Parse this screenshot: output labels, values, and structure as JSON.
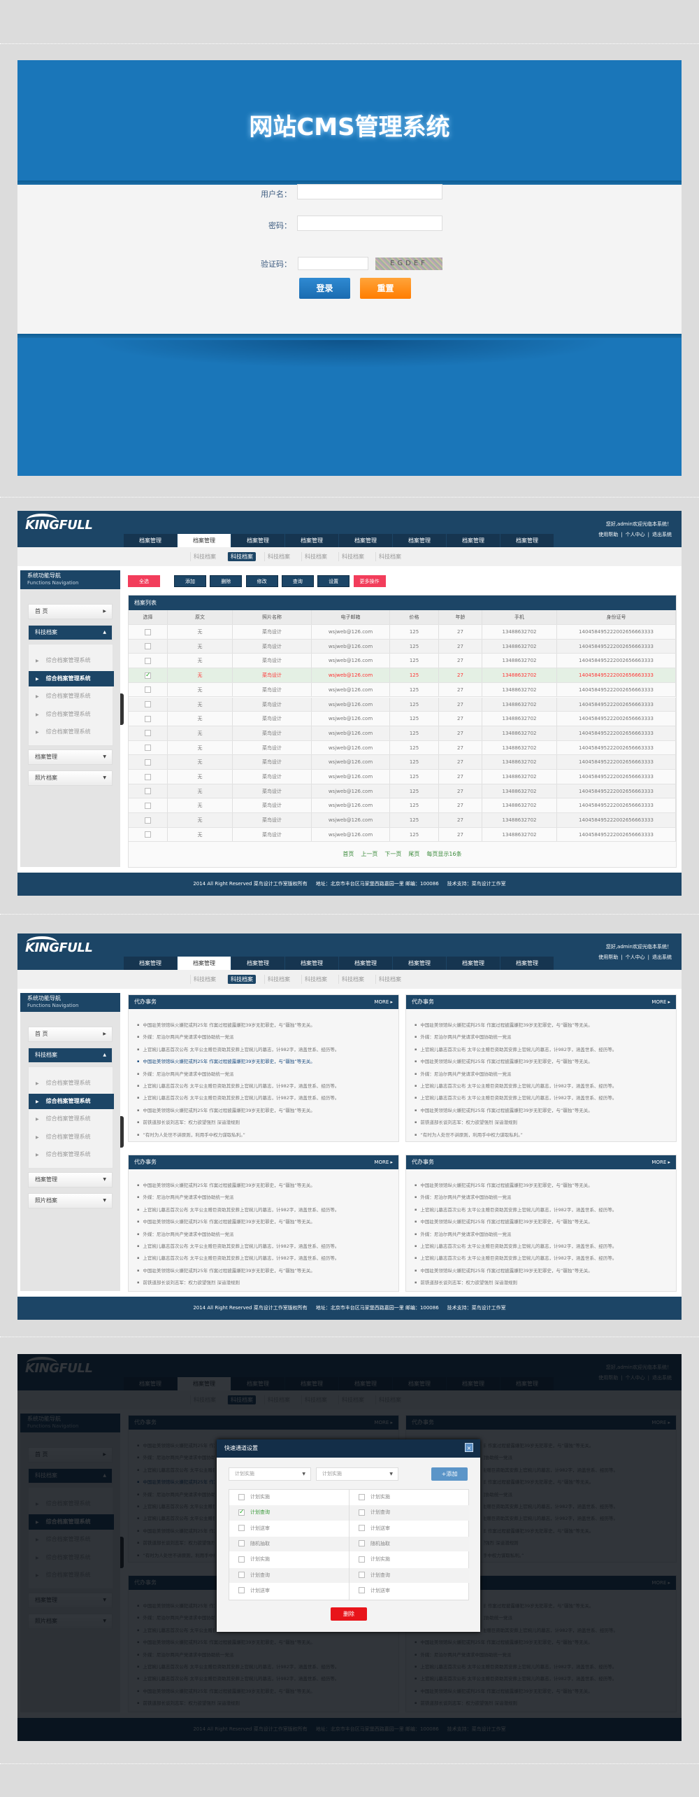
{
  "colors": {
    "brand_navy": "#1c4566",
    "login_blue": "#1a76b9",
    "pink": "#f23d5b",
    "orange": "#ff8a14",
    "delete_red": "#e8141a",
    "pager_green": "#3a8a3a"
  },
  "login": {
    "title": "网站CMS管理系统",
    "username_label": "用户名：",
    "password_label": "密码：",
    "captcha_label": "验证码：",
    "captcha_image_text": "EGDEF",
    "username_value": "",
    "password_value": "",
    "captcha_value": "",
    "login_button": "登录",
    "reset_button": "重置"
  },
  "header": {
    "logo": "KINGFULL",
    "welcome": "您好,admin欢迎光临本系统！",
    "links": [
      "使用帮助",
      "个人中心",
      "退出系统"
    ],
    "tabs": [
      "档案管理",
      "档案管理",
      "档案管理",
      "档案管理",
      "档案管理",
      "档案管理",
      "档案管理",
      "档案管理"
    ],
    "active_tab": 1,
    "subnav": [
      "科技档案",
      "科技档案",
      "科技档案",
      "科技档案",
      "科技档案",
      "科技档案"
    ],
    "active_subnav": 1
  },
  "sidebar": {
    "title": "系统功能导航",
    "subtitle": "Functions Navigation",
    "home": "首 页",
    "open_section": "科技档案",
    "sub_items": [
      "综合档案管理系统",
      "综合档案管理系统",
      "综合档案管理系统",
      "综合档案管理系统",
      "综合档案管理系统"
    ],
    "active_sub": 1,
    "sections": [
      "档案管理",
      "照片档案"
    ]
  },
  "toolbar": {
    "select_all": "全选",
    "buttons": [
      "添加",
      "删除",
      "修改",
      "查询",
      "设置"
    ],
    "more": "更多操作"
  },
  "table": {
    "title": "档案列表",
    "columns": [
      "选择",
      "原文",
      "照片名称",
      "电子邮箱",
      "价格",
      "年龄",
      "手机",
      "身份证号"
    ],
    "selected_row": 3,
    "rows": [
      [
        "无",
        "菜鸟设计",
        "wsjweb@126.com",
        "125",
        "27",
        "13488632702",
        "140458495222002656663333"
      ],
      [
        "无",
        "菜鸟设计",
        "wsjweb@126.com",
        "125",
        "27",
        "13488632702",
        "140458495222002656663333"
      ],
      [
        "无",
        "菜鸟设计",
        "wsjweb@126.com",
        "125",
        "27",
        "13488632702",
        "140458495222002656663333"
      ],
      [
        "无",
        "菜鸟设计",
        "wsjweb@126.com",
        "125",
        "27",
        "13488632702",
        "140458495222002656663333"
      ],
      [
        "无",
        "菜鸟设计",
        "wsjweb@126.com",
        "125",
        "27",
        "13488632702",
        "140458495222002656663333"
      ],
      [
        "无",
        "菜鸟设计",
        "wsjweb@126.com",
        "125",
        "27",
        "13488632702",
        "140458495222002656663333"
      ],
      [
        "无",
        "菜鸟设计",
        "wsjweb@126.com",
        "125",
        "27",
        "13488632702",
        "140458495222002656663333"
      ],
      [
        "无",
        "菜鸟设计",
        "wsjweb@126.com",
        "125",
        "27",
        "13488632702",
        "140458495222002656663333"
      ],
      [
        "无",
        "菜鸟设计",
        "wsjweb@126.com",
        "125",
        "27",
        "13488632702",
        "140458495222002656663333"
      ],
      [
        "无",
        "菜鸟设计",
        "wsjweb@126.com",
        "125",
        "27",
        "13488632702",
        "140458495222002656663333"
      ],
      [
        "无",
        "菜鸟设计",
        "wsjweb@126.com",
        "125",
        "27",
        "13488632702",
        "140458495222002656663333"
      ],
      [
        "无",
        "菜鸟设计",
        "wsjweb@126.com",
        "125",
        "27",
        "13488632702",
        "140458495222002656663333"
      ],
      [
        "无",
        "菜鸟设计",
        "wsjweb@126.com",
        "125",
        "27",
        "13488632702",
        "140458495222002656663333"
      ],
      [
        "无",
        "菜鸟设计",
        "wsjweb@126.com",
        "125",
        "27",
        "13488632702",
        "140458495222002656663333"
      ],
      [
        "无",
        "菜鸟设计",
        "wsjweb@126.com",
        "125",
        "27",
        "13488632702",
        "140458495222002656663333"
      ]
    ],
    "pagination": [
      "首页",
      "上一页",
      "下一页",
      "尾页",
      "每页显示16条"
    ]
  },
  "news": {
    "title": "代办事务",
    "more": "MORE ▸",
    "panels": [
      {
        "highlight": 3,
        "items": [
          "中国驻美领馆纵火嫌犯或判25年 作案过程披露嫌犯39岁无犯罪史，与“疆独”等无关。",
          "外媒：尼泊尔两共产党请求中国协助统一党派",
          "上官婉儿墓志首次公布 太平公主赠巨资助其安葬上官婉儿的墓志，计982字，涵盖世系、经历等。",
          "中国驻美领馆纵火嫌犯或判25年 作案过程披露嫌犯39岁无犯罪史，与“疆独”等无关。",
          "外媒：尼泊尔两共产党请求中国协助统一党派",
          "上官婉儿墓志首次公布 太平公主赠巨资助其安葬上官婉儿的墓志，计982字，涵盖世系、经历等。",
          "上官婉儿墓志首次公布 太平公主赠巨资助其安葬上官婉儿的墓志，计982字，涵盖世系、经历等。",
          "中国驻美领馆纵火嫌犯或判25年 作案过程披露嫌犯39岁无犯罪史，与“疆独”等无关。",
          "前铁道部长谈刘志军：权力欲望强烈 深谙潜规则",
          "“有时为人处世不讲原则，利用手中权力谋取私利。”"
        ]
      },
      {
        "highlight": -1,
        "items": [
          "中国驻美领馆纵火嫌犯或判25年 作案过程披露嫌犯39岁无犯罪史，与“疆独”等无关。",
          "外媒：尼泊尔两共产党请求中国协助统一党派",
          "上官婉儿墓志首次公布 太平公主赠巨资助其安葬上官婉儿的墓志，计982字，涵盖世系、经历等。",
          "中国驻美领馆纵火嫌犯或判25年 作案过程披露嫌犯39岁无犯罪史，与“疆独”等无关。",
          "外媒：尼泊尔两共产党请求中国协助统一党派",
          "上官婉儿墓志首次公布 太平公主赠巨资助其安葬上官婉儿的墓志，计982字，涵盖世系、经历等。",
          "上官婉儿墓志首次公布 太平公主赠巨资助其安葬上官婉儿的墓志，计982字，涵盖世系、经历等。",
          "中国驻美领馆纵火嫌犯或判25年 作案过程披露嫌犯39岁无犯罪史，与“疆独”等无关。",
          "前铁道部长谈刘志军：权力欲望强烈 深谙潜规则",
          "“有时为人处世不讲原则，利用手中权力谋取私利。”"
        ]
      },
      {
        "highlight": -1,
        "items": [
          "中国驻美领馆纵火嫌犯或判25年 作案过程披露嫌犯39岁无犯罪史，与“疆独”等无关。",
          "外媒：尼泊尔两共产党请求中国协助统一党派",
          "上官婉儿墓志首次公布 太平公主赠巨资助其安葬上官婉儿的墓志，计982字，涵盖世系、经历等。",
          "中国驻美领馆纵火嫌犯或判25年 作案过程披露嫌犯39岁无犯罪史，与“疆独”等无关。",
          "外媒：尼泊尔两共产党请求中国协助统一党派",
          "上官婉儿墓志首次公布 太平公主赠巨资助其安葬上官婉儿的墓志，计982字，涵盖世系、经历等。",
          "上官婉儿墓志首次公布 太平公主赠巨资助其安葬上官婉儿的墓志，计982字，涵盖世系、经历等。",
          "中国驻美领馆纵火嫌犯或判25年 作案过程披露嫌犯39岁无犯罪史，与“疆独”等无关。",
          "前铁道部长谈刘志军：权力欲望强烈 深谙潜规则"
        ]
      },
      {
        "highlight": -1,
        "items": [
          "中国驻美领馆纵火嫌犯或判25年 作案过程披露嫌犯39岁无犯罪史，与“疆独”等无关。",
          "外媒：尼泊尔两共产党请求中国协助统一党派",
          "上官婉儿墓志首次公布 太平公主赠巨资助其安葬上官婉儿的墓志，计982字，涵盖世系、经历等。",
          "中国驻美领馆纵火嫌犯或判25年 作案过程披露嫌犯39岁无犯罪史，与“疆独”等无关。",
          "外媒：尼泊尔两共产党请求中国协助统一党派",
          "上官婉儿墓志首次公布 太平公主赠巨资助其安葬上官婉儿的墓志，计982字，涵盖世系、经历等。",
          "上官婉儿墓志首次公布 太平公主赠巨资助其安葬上官婉儿的墓志，计982字，涵盖世系、经历等。",
          "中国驻美领馆纵火嫌犯或判25年 作案过程披露嫌犯39岁无犯罪史，与“疆独”等无关。",
          "前铁道部长谈刘志军：权力欲望强烈 深谙潜规则"
        ]
      }
    ]
  },
  "footer": {
    "copyright": "2014 All Right Reserved 菜鸟设计工作室版权所有",
    "address": "地址：北京市丰台区马家堡西路嘉园一里 邮编：100086",
    "support": "技术支持：菜鸟设计工作室"
  },
  "modal": {
    "title": "快速通道设置",
    "close": "×",
    "select_1": "计划实施",
    "select_2": "计划实施",
    "add_button": "+添加",
    "left_items": [
      "计划实施",
      "计划查询",
      "计划送审",
      "随机抽取",
      "计划实施",
      "计划查询",
      "计划送审"
    ],
    "right_items": [
      "计划实施",
      "计划查询",
      "计划送审",
      "随机抽取",
      "计划实施",
      "计划查询",
      "计划送审"
    ],
    "left_checked": [
      1
    ],
    "right_checked": [],
    "delete_button": "删除"
  }
}
